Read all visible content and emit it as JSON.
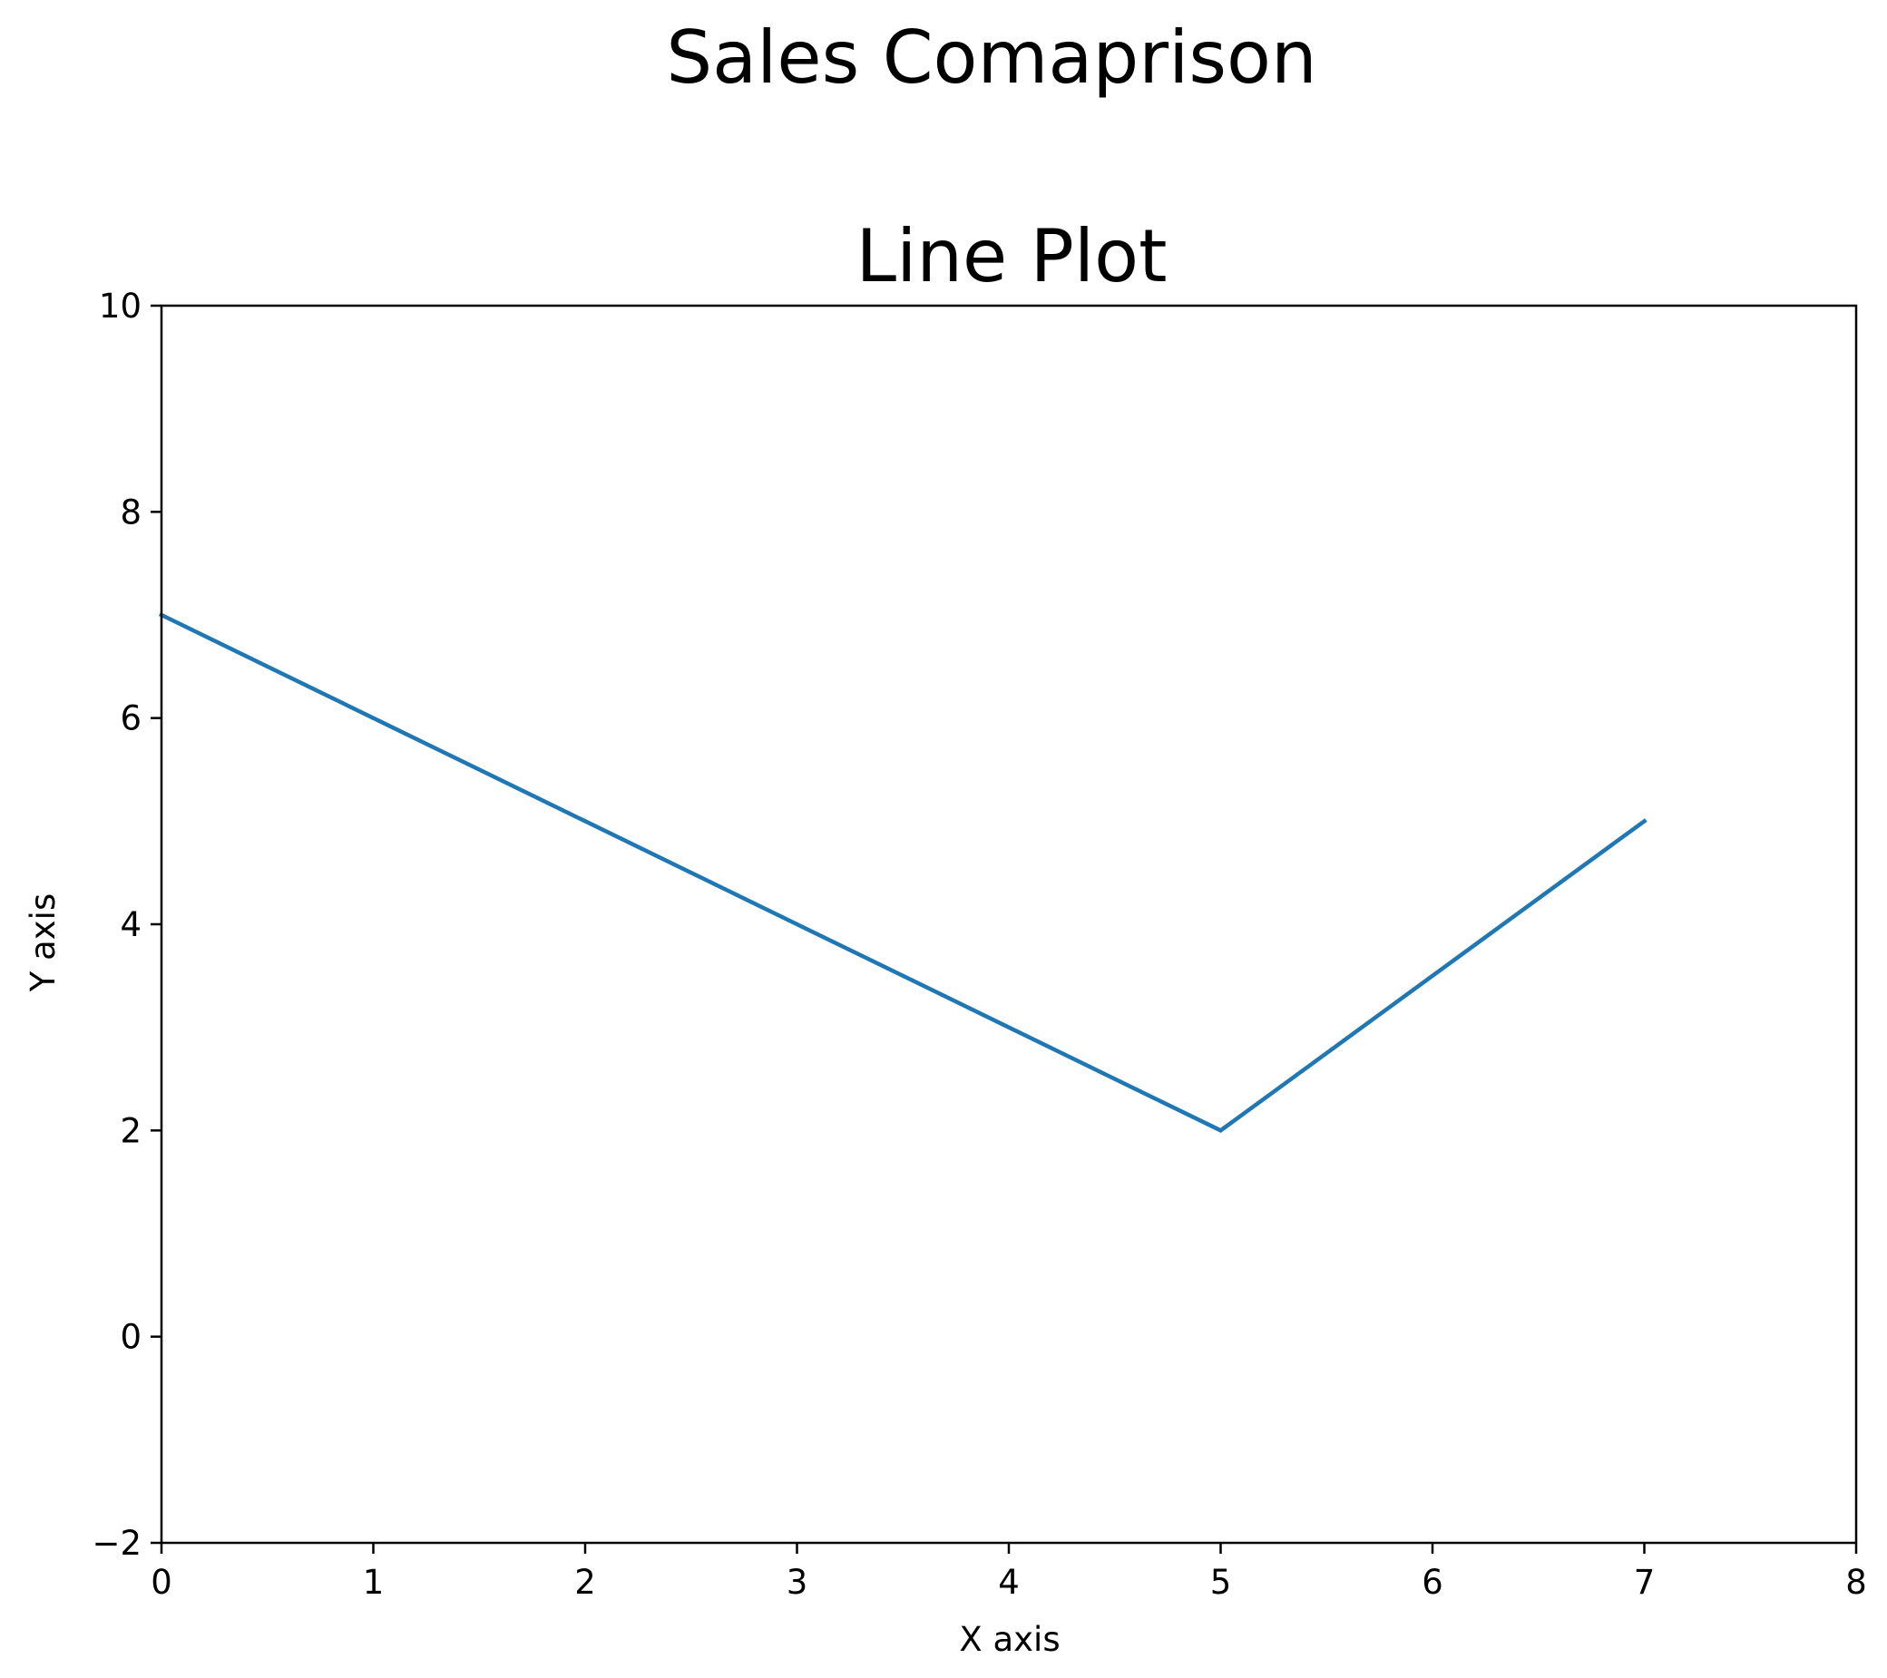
{
  "figure": {
    "suptitle": "Sales Comaprison"
  },
  "chart_data": {
    "type": "line",
    "title": "Line Plot",
    "xlabel": "X axis",
    "ylabel": "Y axis",
    "xlim": [
      0,
      8
    ],
    "ylim": [
      -2,
      10
    ],
    "xticks": [
      0,
      1,
      2,
      3,
      4,
      5,
      6,
      7,
      8
    ],
    "xtick_labels": [
      "0",
      "1",
      "2",
      "3",
      "4",
      "5",
      "6",
      "7",
      "8"
    ],
    "yticks": [
      -2,
      0,
      2,
      4,
      6,
      8,
      10
    ],
    "ytick_labels": [
      "−2",
      "0",
      "2",
      "4",
      "6",
      "8",
      "10"
    ],
    "grid": false,
    "series": [
      {
        "color": "#1f77b4",
        "x": [
          0,
          1,
          2,
          3,
          4,
          5,
          6,
          7
        ],
        "y": [
          7,
          6,
          5,
          4,
          3,
          2,
          3.5,
          5
        ]
      }
    ]
  }
}
